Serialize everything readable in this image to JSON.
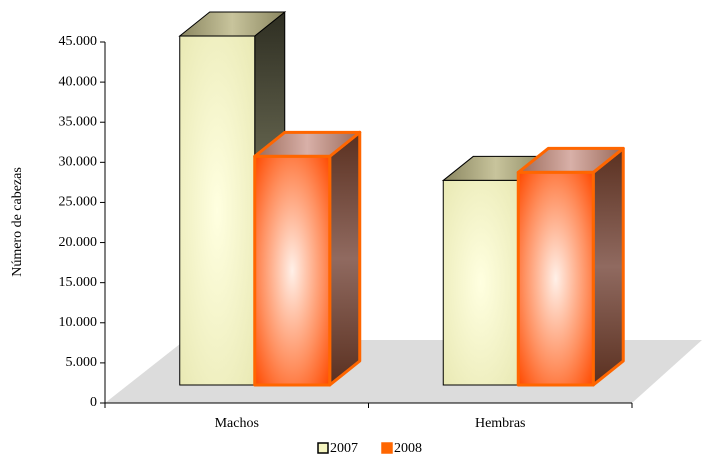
{
  "chart_data": {
    "type": "bar3d",
    "y_label": "Número de cabezas",
    "categories": [
      "Machos",
      "Hembras"
    ],
    "series": [
      {
        "name": "2007",
        "color": "#f5f5c0",
        "values": [
          43500,
          25500
        ]
      },
      {
        "name": "2008",
        "color": "#ff6600",
        "values": [
          28500,
          26500
        ]
      }
    ],
    "ylim": [
      0,
      45000
    ],
    "yticks": [
      0,
      {
        "value": 5000,
        "label": "5.000"
      },
      {
        "value": 10000,
        "label": "10.000"
      },
      {
        "value": 15000,
        "label": "15.000"
      },
      {
        "value": 20000,
        "label": "20.000"
      },
      {
        "value": 25000,
        "label": "25.000"
      },
      {
        "value": 30000,
        "label": "30.000"
      },
      {
        "value": 35000,
        "label": "35.000"
      },
      {
        "value": 40000,
        "label": "40.000"
      },
      {
        "value": 45000,
        "label": "45.000"
      }
    ],
    "legend": "bottom"
  }
}
